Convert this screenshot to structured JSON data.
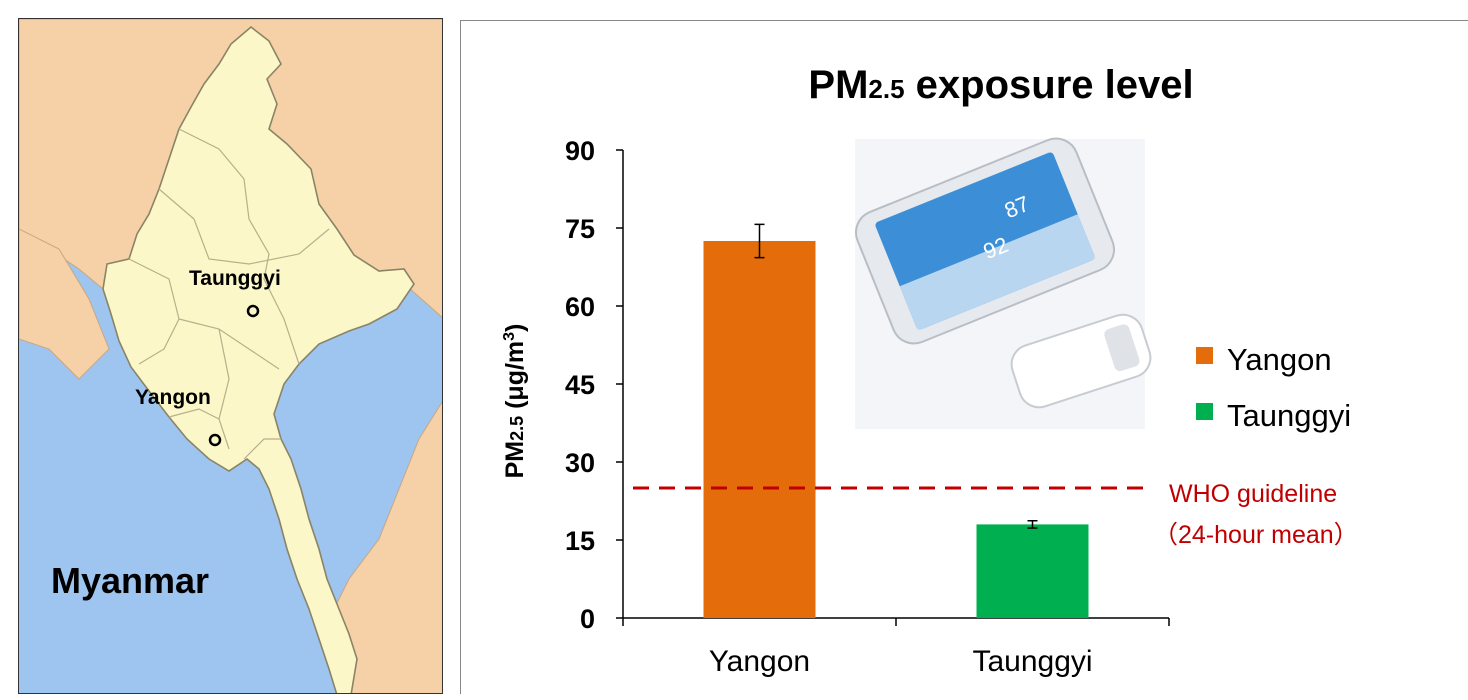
{
  "map": {
    "country_label": "Myanmar",
    "cities": [
      "Taunggyi",
      "Yangon"
    ],
    "colors": {
      "sea": "#9ec4f0",
      "land_other": "#f6d1a8",
      "country": "#fbf7c9",
      "border": "#8a8466"
    }
  },
  "chart_data": {
    "type": "bar",
    "title_main": "PM",
    "title_sub": "2.5",
    "title_rest": " exposure level",
    "ylabel_main": "PM",
    "ylabel_sub": "2.5",
    "ylabel_rest": " (μg/m",
    "ylabel_sup": "3",
    "ylabel_close": ")",
    "ylim": [
      0,
      90
    ],
    "yticks": [
      0,
      15,
      30,
      45,
      60,
      75,
      90
    ],
    "categories": [
      "Yangon",
      "Taunggyi"
    ],
    "values": [
      72.5,
      18
    ],
    "errors": [
      3.2,
      0.7
    ],
    "colors": [
      "#e46c0a",
      "#00b050"
    ],
    "legend": [
      "Yangon",
      "Taunggyi"
    ],
    "legend_position": "right",
    "guideline": {
      "value": 25,
      "label_line1": "WHO guideline",
      "label_line2": "（24-hour mean）",
      "color": "#c00000"
    },
    "grid": false
  },
  "device_image": {
    "readout_1": "87",
    "readout_2": "92"
  }
}
